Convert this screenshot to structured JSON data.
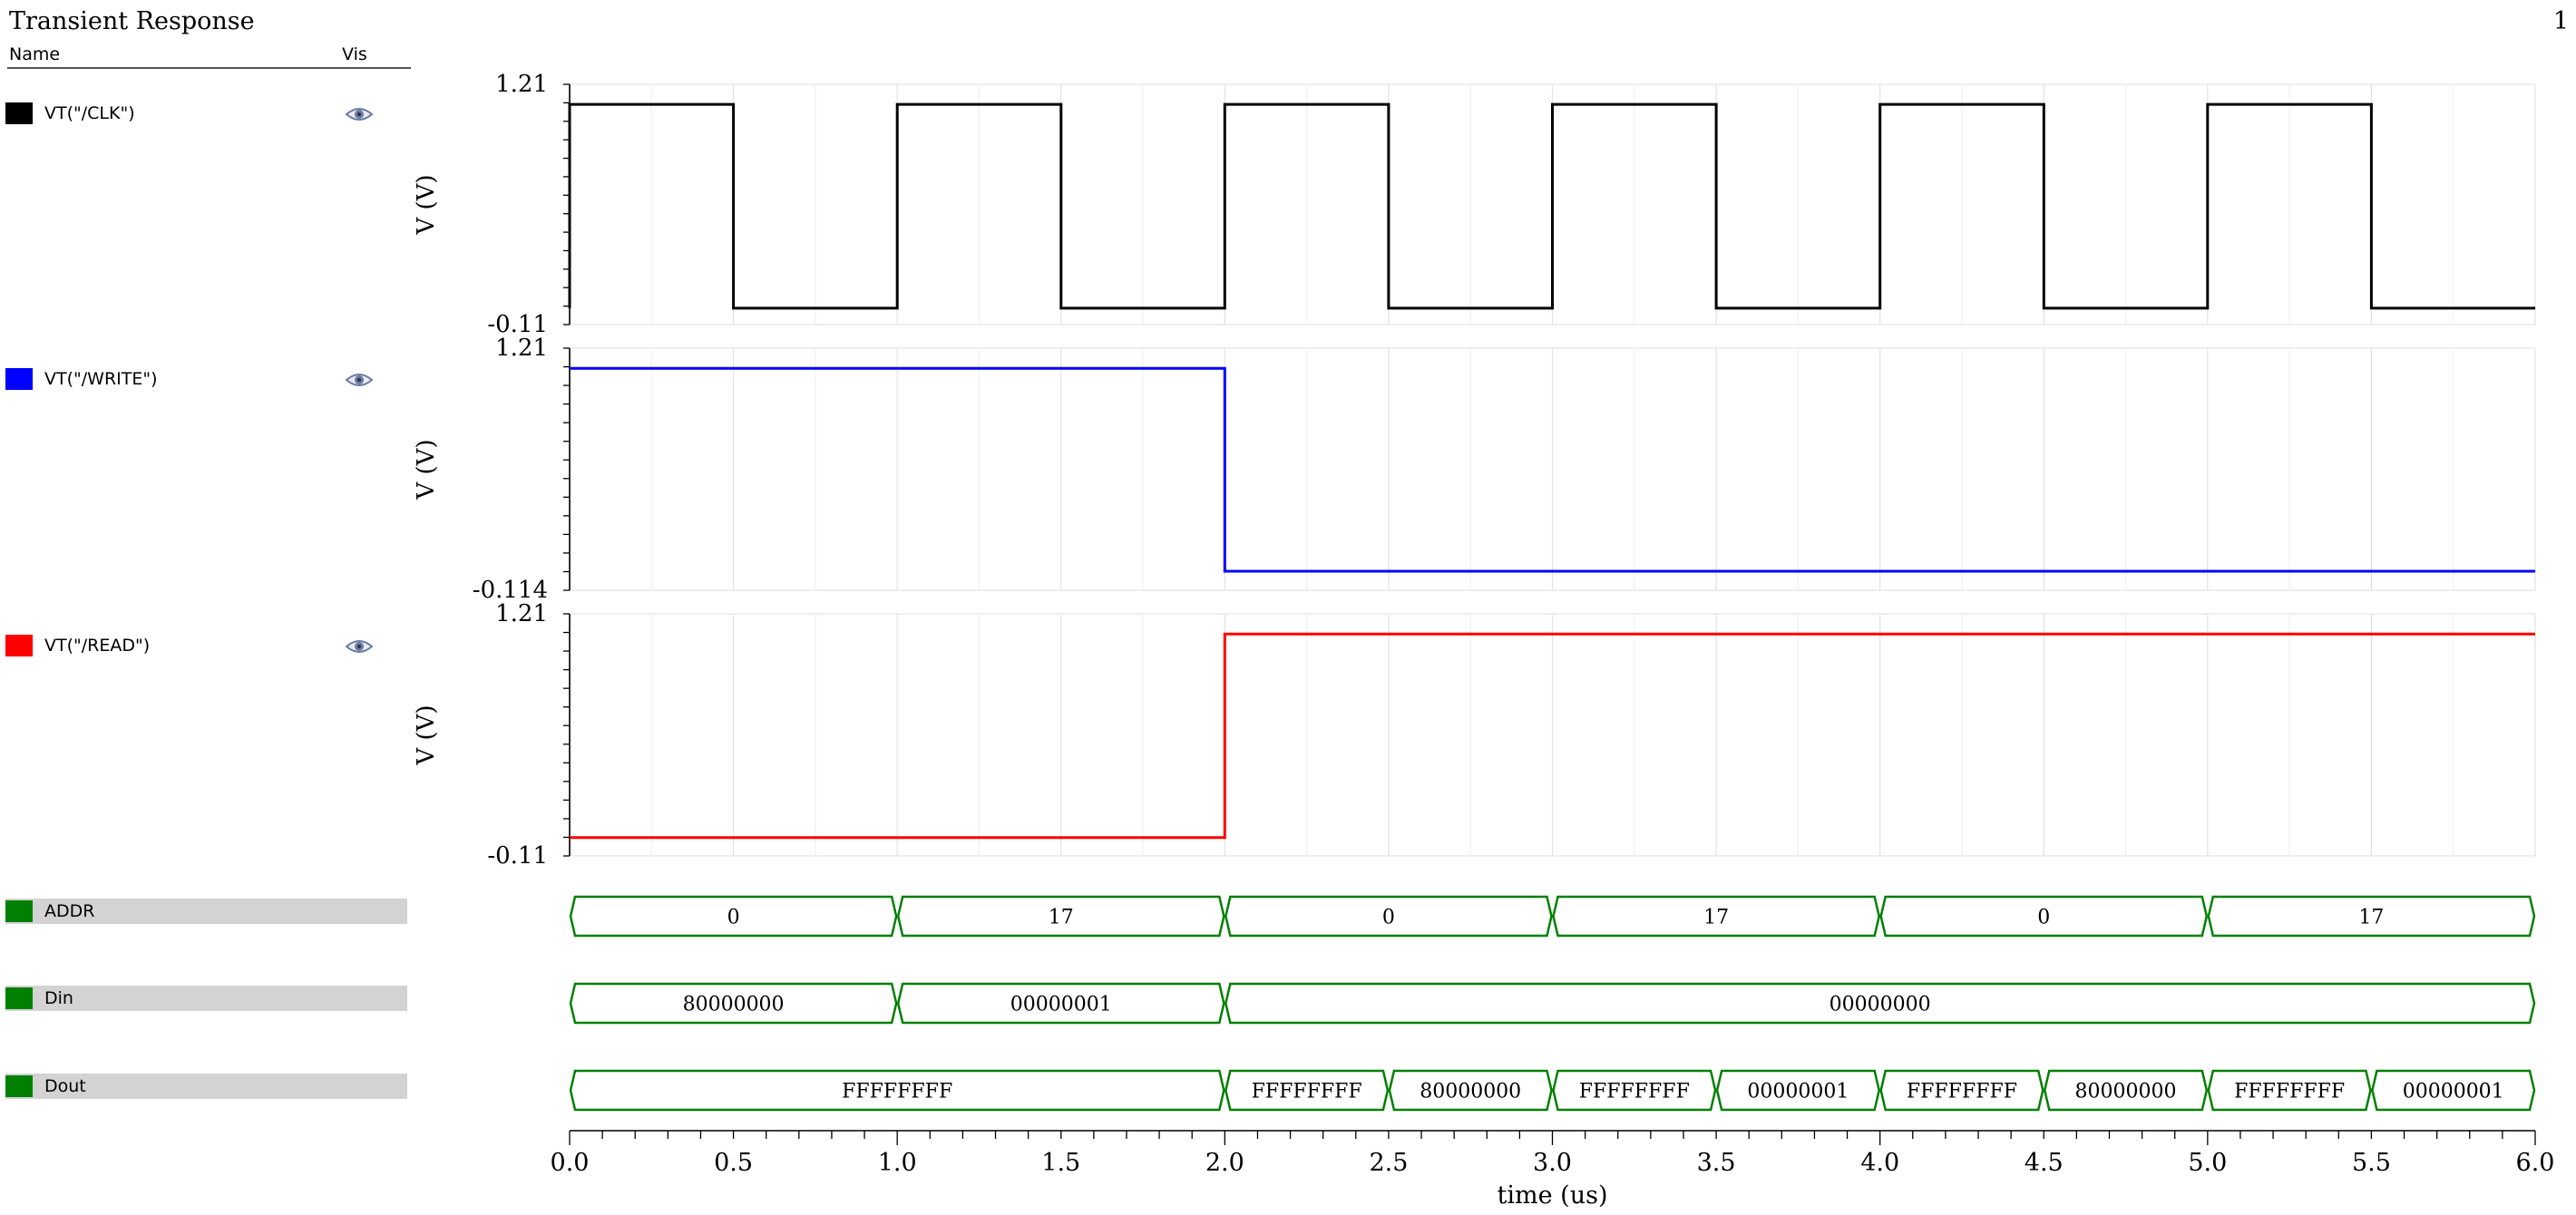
{
  "title": "Transient Response",
  "page_number": "1",
  "legend_header": {
    "name": "Name",
    "vis": "Vis"
  },
  "signals": [
    {
      "label": "VT(\"/CLK\")",
      "color": "#000000",
      "icon": "eye-icon"
    },
    {
      "label": "VT(\"/WRITE\")",
      "color": "#0000ff",
      "icon": "eye-icon"
    },
    {
      "label": "VT(\"/READ\")",
      "color": "#ff0000",
      "icon": "eye-icon"
    },
    {
      "label": "ADDR",
      "color": "#008000"
    },
    {
      "label": "Din",
      "color": "#008000"
    },
    {
      "label": "Dout",
      "color": "#008000"
    }
  ],
  "chart_data": {
    "type": "line",
    "title": "Transient Response",
    "xlabel": "time (us)",
    "xlim": [
      0,
      6
    ],
    "xticks": [
      "0.0",
      "0.5",
      "1.0",
      "1.5",
      "2.0",
      "2.5",
      "3.0",
      "3.5",
      "4.0",
      "4.5",
      "5.0",
      "5.5",
      "6.0"
    ],
    "grid": true,
    "analog": [
      {
        "name": "VT(\"/CLK\")",
        "color": "#000000",
        "ylabel": "V (V)",
        "ymin_label": "-0.11",
        "ymax_label": "1.21",
        "ylim": [
          -0.11,
          1.21
        ],
        "points": [
          [
            0,
            -0.02
          ],
          [
            0,
            1.1
          ],
          [
            0.5,
            1.1
          ],
          [
            0.5,
            -0.02
          ],
          [
            1.0,
            -0.02
          ],
          [
            1.0,
            1.1
          ],
          [
            1.5,
            1.1
          ],
          [
            1.5,
            -0.02
          ],
          [
            2.0,
            -0.02
          ],
          [
            2.0,
            1.1
          ],
          [
            2.5,
            1.1
          ],
          [
            2.5,
            -0.02
          ],
          [
            3.0,
            -0.02
          ],
          [
            3.0,
            1.1
          ],
          [
            3.5,
            1.1
          ],
          [
            3.5,
            -0.02
          ],
          [
            4.0,
            -0.02
          ],
          [
            4.0,
            1.1
          ],
          [
            4.5,
            1.1
          ],
          [
            4.5,
            -0.02
          ],
          [
            5.0,
            -0.02
          ],
          [
            5.0,
            1.1
          ],
          [
            5.5,
            1.1
          ],
          [
            5.5,
            -0.02
          ],
          [
            6.0,
            -0.02
          ]
        ]
      },
      {
        "name": "VT(\"/WRITE\")",
        "color": "#0000ff",
        "ylabel": "V (V)",
        "ymin_label": "-0.114",
        "ymax_label": "1.21",
        "ylim": [
          -0.114,
          1.21
        ],
        "points": [
          [
            0,
            1.1
          ],
          [
            2.0,
            1.1
          ],
          [
            2.0,
            -0.01
          ],
          [
            6.0,
            -0.01
          ]
        ]
      },
      {
        "name": "VT(\"/READ\")",
        "color": "#ff0000",
        "ylabel": "V (V)",
        "ymin_label": "-0.11",
        "ymax_label": "1.21",
        "ylim": [
          -0.11,
          1.21
        ],
        "points": [
          [
            0,
            -0.01
          ],
          [
            2.0,
            -0.01
          ],
          [
            2.0,
            1.1
          ],
          [
            6.0,
            1.1
          ]
        ]
      }
    ],
    "buses": [
      {
        "name": "ADDR",
        "color": "#008000",
        "segments": [
          [
            0,
            1,
            "0"
          ],
          [
            1,
            2,
            "17"
          ],
          [
            2,
            3,
            "0"
          ],
          [
            3,
            4,
            "17"
          ],
          [
            4,
            5,
            "0"
          ],
          [
            5,
            6,
            "17"
          ]
        ]
      },
      {
        "name": "Din",
        "color": "#008000",
        "segments": [
          [
            0,
            1,
            "80000000"
          ],
          [
            1,
            2,
            "00000001"
          ],
          [
            2,
            6,
            "00000000"
          ]
        ]
      },
      {
        "name": "Dout",
        "color": "#008000",
        "segments": [
          [
            0,
            2,
            "FFFFFFFF"
          ],
          [
            2,
            2.5,
            "FFFFFFFF"
          ],
          [
            2.5,
            3,
            "80000000"
          ],
          [
            3,
            3.5,
            "FFFFFFFF"
          ],
          [
            3.5,
            4,
            "00000001"
          ],
          [
            4,
            4.5,
            "FFFFFFFF"
          ],
          [
            4.5,
            5,
            "80000000"
          ],
          [
            5,
            5.5,
            "FFFFFFFF"
          ],
          [
            5.5,
            6,
            "00000001"
          ]
        ]
      }
    ]
  }
}
